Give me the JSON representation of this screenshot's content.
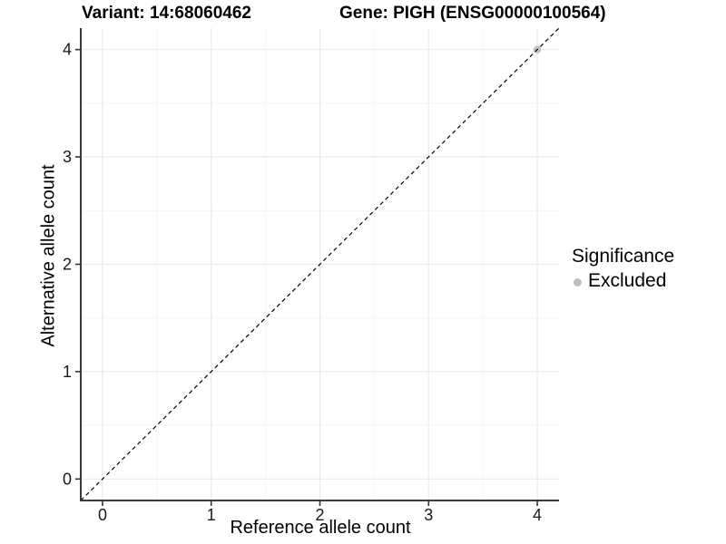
{
  "chart_data": {
    "type": "scatter",
    "title_left": "Variant: 14:68060462",
    "title_right": "Gene: PIGH (ENSG00000100564)",
    "xlabel": "Reference allele count",
    "ylabel": "Alternative allele count",
    "xlim": [
      -0.2,
      4.2
    ],
    "ylim": [
      -0.2,
      4.2
    ],
    "x_ticks": [
      0,
      1,
      2,
      3,
      4
    ],
    "y_ticks": [
      0,
      1,
      2,
      3,
      4
    ],
    "x_minor_ticks": [
      0.5,
      1.5,
      2.5,
      3.5
    ],
    "y_minor_ticks": [
      0.5,
      1.5,
      2.5,
      3.5
    ],
    "grid": true,
    "reference_line": {
      "slope": 1,
      "intercept": 0,
      "style": "dashed",
      "color": "#000000"
    },
    "series": [
      {
        "name": "Excluded",
        "color": "#bebebe",
        "points": [
          {
            "x": 4,
            "y": 4
          }
        ]
      }
    ],
    "legend": {
      "position": "right",
      "title": "Significance",
      "items": [
        {
          "label": "Excluded",
          "color": "#bebebe"
        }
      ]
    },
    "style": {
      "major_grid_color": "#e9e9e9",
      "minor_grid_color": "#f5f5f5",
      "axis_line_color": "#3a3a3a",
      "tick_color": "#333333",
      "tick_label_color": "#1a1a1a",
      "background": "#ffffff"
    }
  }
}
